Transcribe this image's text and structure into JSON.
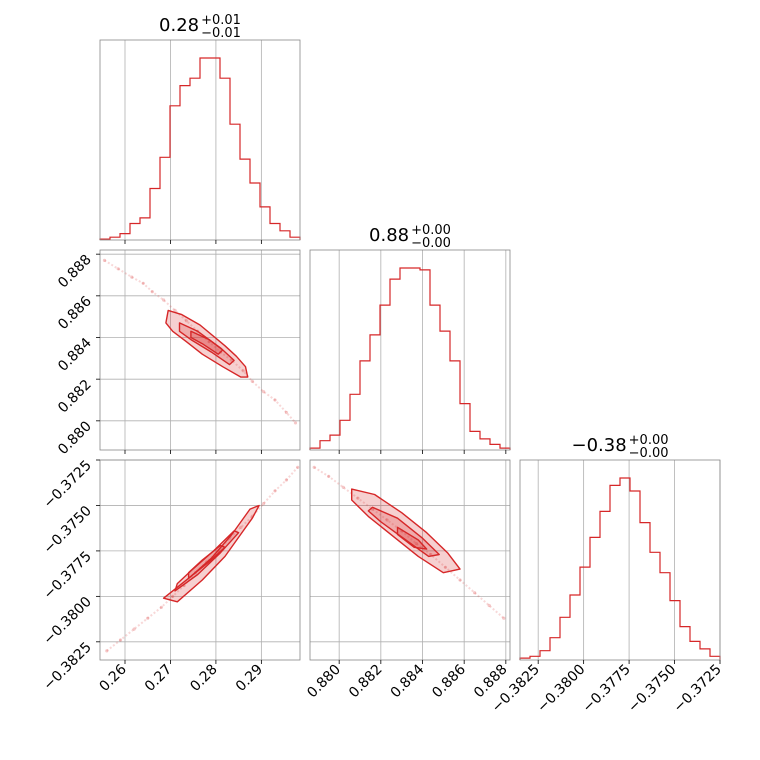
{
  "chart_data": {
    "type": "corner",
    "line_color": "#d62728",
    "grid": true,
    "parameters": [
      {
        "title": "0.28",
        "title_sup": "+0.01",
        "title_sub": "−0.01",
        "range": [
          0.2545,
          0.2985
        ],
        "ticks": [
          0.26,
          0.27,
          0.28,
          0.29
        ],
        "tick_labels": [
          "0.26",
          "0.27",
          "0.28",
          "0.29"
        ],
        "hist_edges_start": 0.2545,
        "hist_bin_width": 0.0022,
        "hist_counts": [
          0.5,
          1.5,
          3.5,
          9,
          12,
          28,
          45,
          73,
          84,
          88,
          99,
          99,
          88,
          63,
          44,
          31,
          18,
          9,
          5,
          1.5
        ]
      },
      {
        "title": "0.88",
        "title_sup": "+0.00",
        "title_sub": "−0.00",
        "range": [
          0.8786,
          0.8882
        ],
        "ticks": [
          0.88,
          0.882,
          0.884,
          0.886,
          0.888
        ],
        "tick_labels": [
          "0.880",
          "0.882",
          "0.884",
          "0.886",
          "0.888"
        ],
        "hist_edges_start": 0.8786,
        "hist_bin_width": 0.00048,
        "hist_counts": [
          1,
          5,
          8,
          16,
          30,
          48,
          62,
          78,
          92,
          98,
          98,
          97,
          78,
          64,
          48,
          25,
          10,
          6,
          3,
          1
        ]
      },
      {
        "title": "−0.38",
        "title_sup": "+0.00",
        "title_sub": "−0.00",
        "range": [
          -0.3835,
          -0.3725
        ],
        "ticks": [
          -0.3825,
          -0.38,
          -0.3775,
          -0.375,
          -0.3725
        ],
        "tick_labels": [
          "−0.3825",
          "−0.3800",
          "−0.3775",
          "−0.3750",
          "−0.3725"
        ],
        "hist_edges_start": -0.3835,
        "hist_bin_width": 0.00055,
        "hist_counts": [
          1,
          2,
          5,
          12,
          23,
          35,
          50,
          66,
          80,
          94,
          98,
          91,
          74,
          58,
          47,
          32,
          18,
          10,
          6,
          2
        ]
      }
    ],
    "pairs": [
      {
        "row": 1,
        "col": 0,
        "points": [
          [
            0.2555,
            0.8877
          ],
          [
            0.2585,
            0.8873
          ],
          [
            0.2615,
            0.8869
          ],
          [
            0.264,
            0.8866
          ],
          [
            0.266,
            0.8862
          ],
          [
            0.2685,
            0.8858
          ],
          [
            0.271,
            0.8853
          ],
          [
            0.2735,
            0.8848
          ],
          [
            0.276,
            0.8843
          ],
          [
            0.2785,
            0.8838
          ],
          [
            0.281,
            0.8833
          ],
          [
            0.2835,
            0.8829
          ],
          [
            0.286,
            0.8824
          ],
          [
            0.288,
            0.8819
          ],
          [
            0.2905,
            0.8814
          ],
          [
            0.293,
            0.881
          ],
          [
            0.2955,
            0.8804
          ],
          [
            0.2975,
            0.8799
          ]
        ],
        "contour_outer": [
          [
            0.2695,
            0.8853
          ],
          [
            0.2725,
            0.8851
          ],
          [
            0.2765,
            0.8846
          ],
          [
            0.282,
            0.8836
          ],
          [
            0.2845,
            0.8831
          ],
          [
            0.2865,
            0.8826
          ],
          [
            0.287,
            0.8821
          ],
          [
            0.2855,
            0.8821
          ],
          [
            0.2815,
            0.8826
          ],
          [
            0.277,
            0.8832
          ],
          [
            0.2735,
            0.8838
          ],
          [
            0.2705,
            0.8843
          ],
          [
            0.269,
            0.8847
          ]
        ],
        "contour_mid": [
          [
            0.272,
            0.8847
          ],
          [
            0.276,
            0.8843
          ],
          [
            0.281,
            0.8835
          ],
          [
            0.284,
            0.8829
          ],
          [
            0.283,
            0.8827
          ],
          [
            0.279,
            0.8833
          ],
          [
            0.2745,
            0.8839
          ],
          [
            0.272,
            0.8843
          ]
        ],
        "contour_inner": [
          [
            0.2745,
            0.8843
          ],
          [
            0.2785,
            0.8839
          ],
          [
            0.2815,
            0.8834
          ],
          [
            0.2805,
            0.8832
          ],
          [
            0.277,
            0.8837
          ],
          [
            0.2745,
            0.884
          ]
        ]
      },
      {
        "row": 2,
        "col": 0,
        "points": [
          [
            0.256,
            -0.383
          ],
          [
            0.259,
            -0.3824
          ],
          [
            0.262,
            -0.3818
          ],
          [
            0.265,
            -0.3812
          ],
          [
            0.268,
            -0.3806
          ],
          [
            0.2705,
            -0.38
          ],
          [
            0.273,
            -0.3794
          ],
          [
            0.2755,
            -0.3787
          ],
          [
            0.278,
            -0.3781
          ],
          [
            0.2805,
            -0.3775
          ],
          [
            0.283,
            -0.3768
          ],
          [
            0.2855,
            -0.3762
          ],
          [
            0.288,
            -0.3756
          ],
          [
            0.2905,
            -0.3749
          ],
          [
            0.293,
            -0.3742
          ],
          [
            0.2955,
            -0.3736
          ],
          [
            0.298,
            -0.3729
          ]
        ],
        "contour_outer": [
          [
            0.2685,
            -0.3801
          ],
          [
            0.2715,
            -0.3803
          ],
          [
            0.277,
            -0.3791
          ],
          [
            0.282,
            -0.3778
          ],
          [
            0.286,
            -0.3764
          ],
          [
            0.288,
            -0.3757
          ],
          [
            0.2895,
            -0.375
          ],
          [
            0.2875,
            -0.3752
          ],
          [
            0.2835,
            -0.3766
          ],
          [
            0.279,
            -0.3779
          ],
          [
            0.2745,
            -0.3789
          ],
          [
            0.2705,
            -0.3797
          ]
        ],
        "contour_mid": [
          [
            0.271,
            -0.3797
          ],
          [
            0.276,
            -0.3788
          ],
          [
            0.281,
            -0.3776
          ],
          [
            0.285,
            -0.3765
          ],
          [
            0.284,
            -0.3764
          ],
          [
            0.2795,
            -0.3775
          ],
          [
            0.2745,
            -0.3786
          ],
          [
            0.2715,
            -0.3793
          ]
        ],
        "contour_inner": [
          [
            0.274,
            -0.379
          ],
          [
            0.2785,
            -0.3781
          ],
          [
            0.282,
            -0.3773
          ],
          [
            0.281,
            -0.3772
          ],
          [
            0.277,
            -0.378
          ],
          [
            0.274,
            -0.3787
          ]
        ]
      },
      {
        "row": 2,
        "col": 1,
        "points": [
          [
            0.8788,
            -0.3729
          ],
          [
            0.8795,
            -0.3734
          ],
          [
            0.8802,
            -0.374
          ],
          [
            0.8809,
            -0.3746
          ],
          [
            0.8816,
            -0.3752
          ],
          [
            0.8823,
            -0.3758
          ],
          [
            0.883,
            -0.3764
          ],
          [
            0.8837,
            -0.3771
          ],
          [
            0.8844,
            -0.3777
          ],
          [
            0.8851,
            -0.3784
          ],
          [
            0.8858,
            -0.3791
          ],
          [
            0.8865,
            -0.3798
          ],
          [
            0.8872,
            -0.3805
          ],
          [
            0.8879,
            -0.3812
          ]
        ],
        "contour_outer": [
          [
            0.8806,
            -0.3741
          ],
          [
            0.8817,
            -0.3744
          ],
          [
            0.883,
            -0.3754
          ],
          [
            0.8842,
            -0.3765
          ],
          [
            0.8852,
            -0.3776
          ],
          [
            0.8858,
            -0.3785
          ],
          [
            0.885,
            -0.3787
          ],
          [
            0.8838,
            -0.3778
          ],
          [
            0.8826,
            -0.3767
          ],
          [
            0.8814,
            -0.3756
          ],
          [
            0.8806,
            -0.3747
          ]
        ],
        "contour_mid": [
          [
            0.8816,
            -0.3751
          ],
          [
            0.8828,
            -0.3757
          ],
          [
            0.884,
            -0.3768
          ],
          [
            0.8848,
            -0.3777
          ],
          [
            0.8843,
            -0.3778
          ],
          [
            0.8832,
            -0.3769
          ],
          [
            0.882,
            -0.3759
          ],
          [
            0.8814,
            -0.3753
          ]
        ],
        "contour_inner": [
          [
            0.8828,
            -0.3762
          ],
          [
            0.8838,
            -0.3769
          ],
          [
            0.8842,
            -0.3774
          ],
          [
            0.8836,
            -0.3773
          ],
          [
            0.8828,
            -0.3766
          ]
        ]
      }
    ]
  }
}
